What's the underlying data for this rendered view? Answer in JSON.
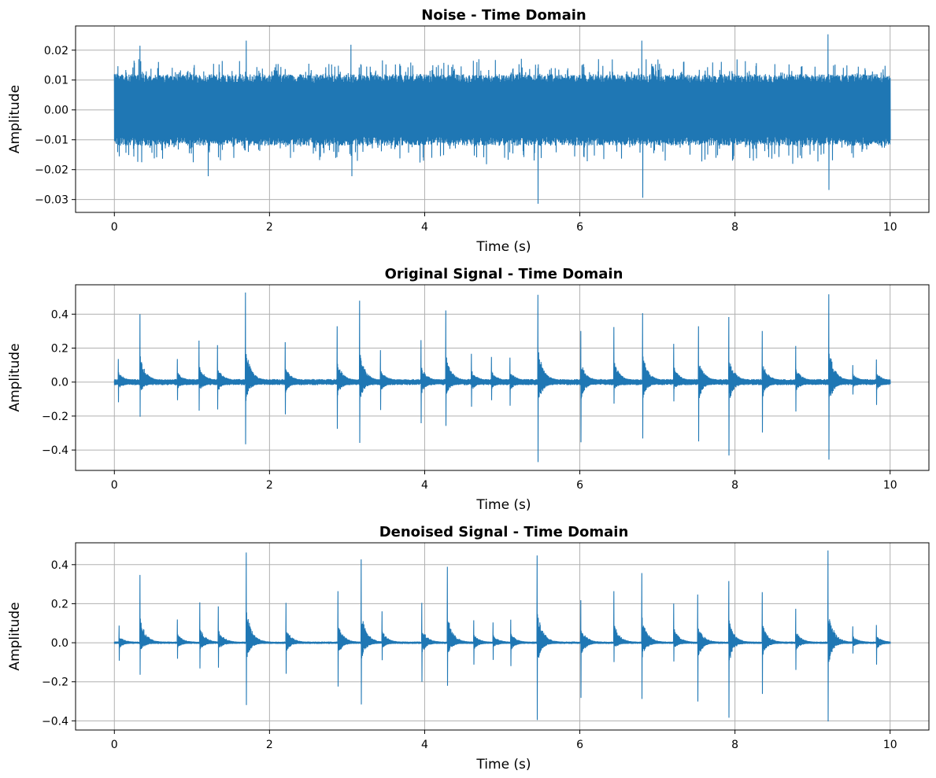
{
  "chart_data": [
    {
      "type": "line",
      "title": "Noise - Time Domain",
      "xlabel": "Time (s)",
      "ylabel": "Amplitude",
      "xlim": [
        -0.5,
        10.5
      ],
      "ylim": [
        -0.0343,
        0.0281
      ],
      "xticks": [
        0,
        2,
        4,
        6,
        8,
        10
      ],
      "xtick_labels": [
        "0",
        "2",
        "4",
        "6",
        "8",
        "10"
      ],
      "yticks": [
        0.02,
        0.01,
        0.0,
        -0.01,
        -0.02,
        -0.03
      ],
      "ytick_labels": [
        "0.02",
        "0.01",
        "0.00",
        "−0.01",
        "−0.02",
        "−0.03"
      ],
      "grid": true,
      "color": "#1f77b4",
      "noise_band": 0.012,
      "spikes": [
        {
          "t": 0.33,
          "value": 0.0215
        },
        {
          "t": 1.21,
          "value": -0.0222
        },
        {
          "t": 1.7,
          "value": 0.0232
        },
        {
          "t": 3.05,
          "value": 0.0218
        },
        {
          "t": 3.06,
          "value": -0.0222
        },
        {
          "t": 5.46,
          "value": -0.0314
        },
        {
          "t": 6.8,
          "value": 0.0232
        },
        {
          "t": 6.81,
          "value": -0.0294
        },
        {
          "t": 9.2,
          "value": 0.0253
        },
        {
          "t": 9.21,
          "value": -0.0268
        }
      ]
    },
    {
      "type": "line",
      "title": "Original Signal - Time Domain",
      "xlabel": "Time (s)",
      "ylabel": "Amplitude",
      "xlim": [
        -0.5,
        10.5
      ],
      "ylim": [
        -0.52,
        0.573
      ],
      "xticks": [
        0,
        2,
        4,
        6,
        8,
        10
      ],
      "xtick_labels": [
        "0",
        "2",
        "4",
        "6",
        "8",
        "10"
      ],
      "yticks": [
        0.4,
        0.2,
        0.0,
        -0.2,
        -0.4
      ],
      "ytick_labels": [
        "0.4",
        "0.2",
        "0.0",
        "−0.2",
        "−0.4"
      ],
      "grid": true,
      "color": "#1f77b4",
      "baseline_noise": 0.018,
      "events": [
        {
          "t": 0.05,
          "peak": 0.136,
          "trough": -0.119
        },
        {
          "t": 0.33,
          "peak": 0.4,
          "trough": -0.204
        },
        {
          "t": 0.81,
          "peak": 0.136,
          "trough": -0.107
        },
        {
          "t": 1.09,
          "peak": 0.244,
          "trough": -0.168
        },
        {
          "t": 1.33,
          "peak": 0.218,
          "trough": -0.161
        },
        {
          "t": 1.69,
          "peak": 0.527,
          "trough": -0.366
        },
        {
          "t": 2.2,
          "peak": 0.235,
          "trough": -0.19
        },
        {
          "t": 2.87,
          "peak": 0.329,
          "trough": -0.275
        },
        {
          "t": 3.16,
          "peak": 0.479,
          "trough": -0.358
        },
        {
          "t": 3.43,
          "peak": 0.188,
          "trough": -0.165
        },
        {
          "t": 3.95,
          "peak": 0.247,
          "trough": -0.242
        },
        {
          "t": 4.27,
          "peak": 0.422,
          "trough": -0.258
        },
        {
          "t": 4.6,
          "peak": 0.167,
          "trough": -0.145
        },
        {
          "t": 4.86,
          "peak": 0.148,
          "trough": -0.107
        },
        {
          "t": 5.1,
          "peak": 0.144,
          "trough": -0.139
        },
        {
          "t": 5.46,
          "peak": 0.514,
          "trough": -0.471
        },
        {
          "t": 6.01,
          "peak": 0.301,
          "trough": -0.354
        },
        {
          "t": 6.44,
          "peak": 0.324,
          "trough": -0.127
        },
        {
          "t": 6.81,
          "peak": 0.406,
          "trough": -0.332
        },
        {
          "t": 7.21,
          "peak": 0.225,
          "trough": -0.114
        },
        {
          "t": 7.53,
          "peak": 0.329,
          "trough": -0.349
        },
        {
          "t": 7.92,
          "peak": 0.383,
          "trough": -0.432
        },
        {
          "t": 8.35,
          "peak": 0.301,
          "trough": -0.297
        },
        {
          "t": 8.78,
          "peak": 0.213,
          "trough": -0.173
        },
        {
          "t": 9.21,
          "peak": 0.517,
          "trough": -0.456
        },
        {
          "t": 9.52,
          "peak": 0.1,
          "trough": -0.073
        },
        {
          "t": 9.82,
          "peak": 0.133,
          "trough": -0.134
        }
      ]
    },
    {
      "type": "line",
      "title": "Denoised Signal - Time Domain",
      "xlabel": "Time (s)",
      "ylabel": "Amplitude",
      "xlim": [
        -0.5,
        10.5
      ],
      "ylim": [
        -0.447,
        0.512
      ],
      "xticks": [
        0,
        2,
        4,
        6,
        8,
        10
      ],
      "xtick_labels": [
        "0",
        "2",
        "4",
        "6",
        "8",
        "10"
      ],
      "yticks": [
        0.4,
        0.2,
        0.0,
        -0.2,
        -0.4
      ],
      "ytick_labels": [
        "0.4",
        "0.2",
        "0.0",
        "−0.2",
        "−0.4"
      ],
      "grid": true,
      "color": "#1f77b4",
      "baseline_noise": 0.006,
      "events": [
        {
          "t": 0.06,
          "peak": 0.088,
          "trough": -0.092
        },
        {
          "t": 0.33,
          "peak": 0.347,
          "trough": -0.164
        },
        {
          "t": 0.81,
          "peak": 0.119,
          "trough": -0.082
        },
        {
          "t": 1.1,
          "peak": 0.207,
          "trough": -0.132
        },
        {
          "t": 1.34,
          "peak": 0.186,
          "trough": -0.128
        },
        {
          "t": 1.7,
          "peak": 0.462,
          "trough": -0.319
        },
        {
          "t": 2.21,
          "peak": 0.204,
          "trough": -0.159
        },
        {
          "t": 2.88,
          "peak": 0.264,
          "trough": -0.224
        },
        {
          "t": 3.18,
          "peak": 0.427,
          "trough": -0.316
        },
        {
          "t": 3.45,
          "peak": 0.161,
          "trough": -0.089
        },
        {
          "t": 3.96,
          "peak": 0.204,
          "trough": -0.2
        },
        {
          "t": 4.29,
          "peak": 0.389,
          "trough": -0.22
        },
        {
          "t": 4.63,
          "peak": 0.115,
          "trough": -0.112
        },
        {
          "t": 4.88,
          "peak": 0.104,
          "trough": -0.088
        },
        {
          "t": 5.11,
          "peak": 0.118,
          "trough": -0.12
        },
        {
          "t": 5.45,
          "peak": 0.447,
          "trough": -0.396
        },
        {
          "t": 6.01,
          "peak": 0.218,
          "trough": -0.282
        },
        {
          "t": 6.44,
          "peak": 0.264,
          "trough": -0.099
        },
        {
          "t": 6.8,
          "peak": 0.357,
          "trough": -0.288
        },
        {
          "t": 7.21,
          "peak": 0.201,
          "trough": -0.096
        },
        {
          "t": 7.52,
          "peak": 0.247,
          "trough": -0.301
        },
        {
          "t": 7.92,
          "peak": 0.316,
          "trough": -0.384
        },
        {
          "t": 8.35,
          "peak": 0.259,
          "trough": -0.262
        },
        {
          "t": 8.78,
          "peak": 0.174,
          "trough": -0.139
        },
        {
          "t": 9.2,
          "peak": 0.473,
          "trough": -0.403
        },
        {
          "t": 9.52,
          "peak": 0.084,
          "trough": -0.055
        },
        {
          "t": 9.82,
          "peak": 0.091,
          "trough": -0.112
        }
      ]
    }
  ]
}
